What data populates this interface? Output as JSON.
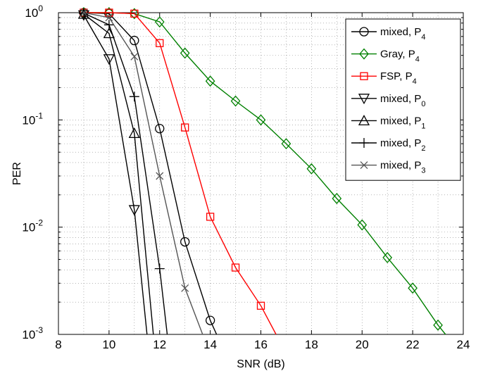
{
  "chart_data": {
    "type": "line",
    "x_scale": "linear",
    "y_scale": "log",
    "xlim": [
      8,
      24
    ],
    "ylim": [
      0.001,
      1
    ],
    "xlabel": "SNR (dB)",
    "ylabel": "PER",
    "x_ticks": [
      "8",
      "10",
      "12",
      "14",
      "16",
      "18",
      "20",
      "22",
      "24"
    ],
    "y_ticks": [
      {
        "base": "10",
        "exp": "0",
        "value": 1
      },
      {
        "base": "10",
        "exp": "-1",
        "value": 0.1
      },
      {
        "base": "10",
        "exp": "-2",
        "value": 0.01
      },
      {
        "base": "10",
        "exp": "-3",
        "value": 0.001
      }
    ],
    "grid": true,
    "legend_position": "top-right",
    "series": [
      {
        "label": "mixed, ",
        "sub": "4",
        "color": "#000000",
        "marker": "circle",
        "x": [
          9,
          10,
          11,
          12,
          13,
          14,
          14.25
        ],
        "y": [
          1.0,
          0.98,
          0.55,
          0.083,
          0.0073,
          0.00135,
          0.001
        ]
      },
      {
        "label": "Gray, ",
        "sub": "4",
        "color": "#008000",
        "marker": "diamond",
        "x": [
          9,
          10,
          11,
          12,
          13,
          14,
          15,
          16,
          17,
          18,
          19,
          20,
          21,
          22,
          23,
          23.3
        ],
        "y": [
          1.0,
          1.0,
          0.98,
          0.82,
          0.42,
          0.23,
          0.15,
          0.1,
          0.06,
          0.035,
          0.0185,
          0.0105,
          0.0052,
          0.0027,
          0.00122,
          0.001
        ]
      },
      {
        "label": "FSP, ",
        "sub": "4",
        "color": "#ff0000",
        "marker": "square",
        "x": [
          9,
          10,
          11,
          12,
          13,
          14,
          15,
          16,
          16.6
        ],
        "y": [
          1.0,
          1.0,
          0.98,
          0.52,
          0.085,
          0.0125,
          0.0042,
          0.00185,
          0.001
        ]
      },
      {
        "label": "mixed, ",
        "sub": "0",
        "color": "#000000",
        "marker": "triangle-down",
        "x": [
          9,
          10,
          11,
          11.5
        ],
        "y": [
          0.95,
          0.37,
          0.0145,
          0.001
        ]
      },
      {
        "label": "mixed, ",
        "sub": "1",
        "color": "#000000",
        "marker": "triangle-up",
        "x": [
          9,
          10,
          11,
          11.75
        ],
        "y": [
          0.97,
          0.64,
          0.075,
          0.001
        ]
      },
      {
        "label": "mixed, ",
        "sub": "2",
        "color": "#000000",
        "marker": "plus",
        "x": [
          9,
          10,
          11,
          12,
          12.3
        ],
        "y": [
          0.99,
          0.77,
          0.165,
          0.0041,
          0.001
        ]
      },
      {
        "label": "mixed, ",
        "sub": "3",
        "color": "#555555",
        "marker": "x",
        "x": [
          9,
          10,
          11,
          12,
          13,
          13.7
        ],
        "y": [
          1.0,
          0.9,
          0.39,
          0.03,
          0.0027,
          0.001
        ]
      }
    ]
  }
}
